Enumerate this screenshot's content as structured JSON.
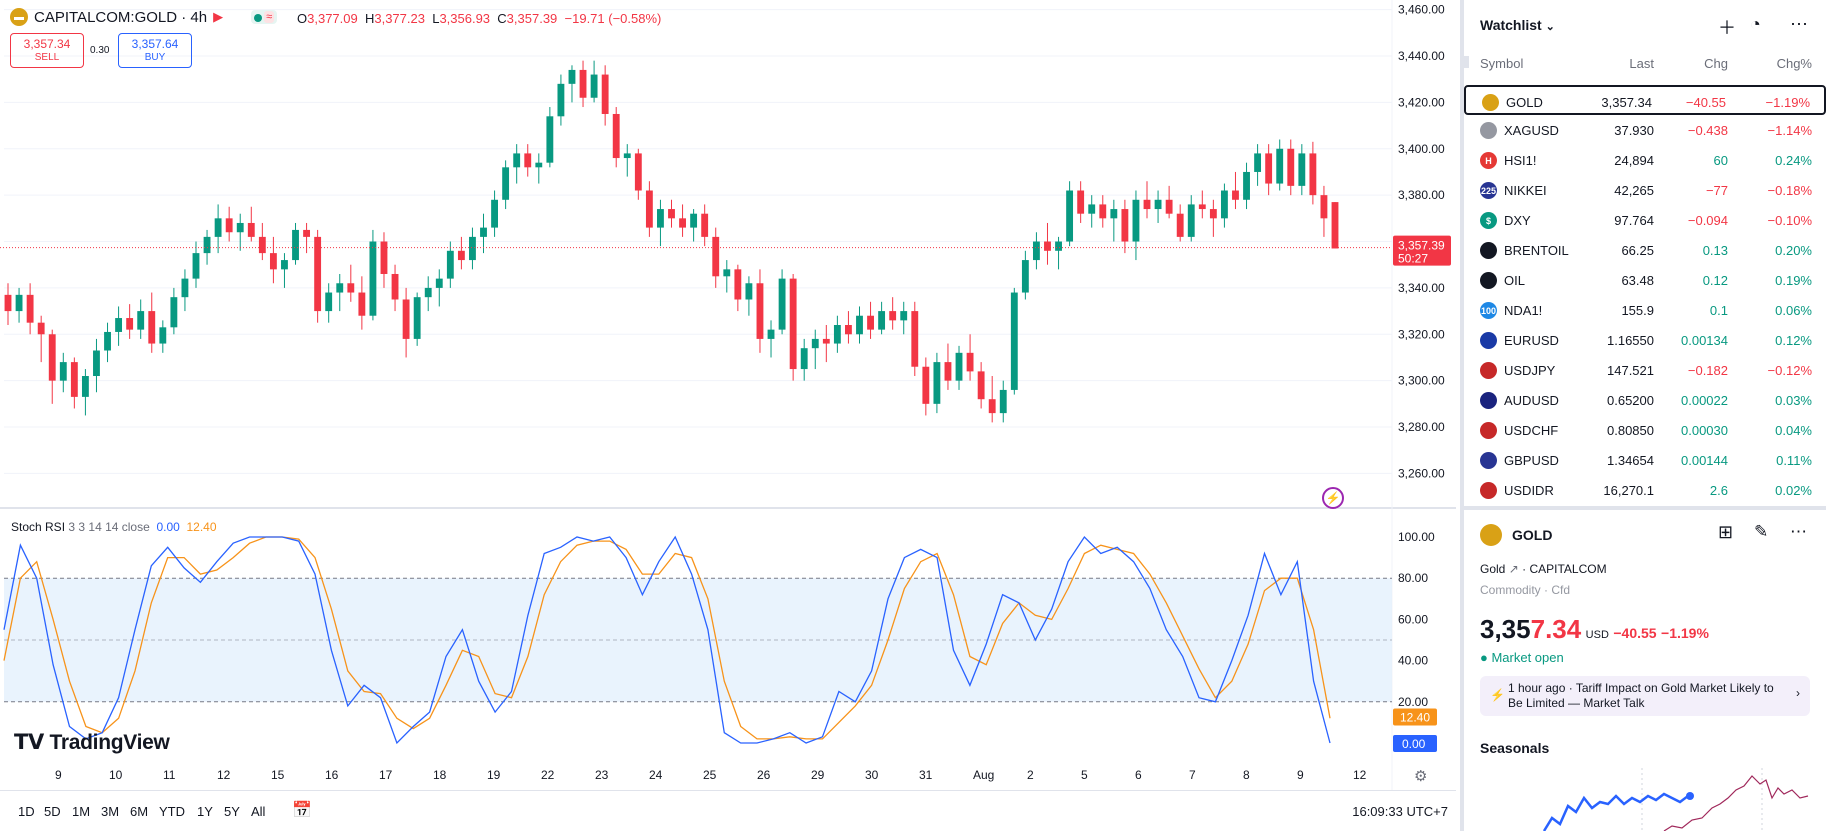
{
  "header": {
    "symbol_title": "CAPITALCOM:GOLD · 4h",
    "logo_icon": "gold-bars-icon",
    "ohlc": {
      "o_label": "O",
      "o": "3,377.09",
      "h_label": "H",
      "h": "3,377.23",
      "l_label": "L",
      "l": "3,356.93",
      "c_label": "C",
      "c": "3,357.39",
      "change": "−19.71 (−0.58%)"
    },
    "sell_price": "3,357.34",
    "sell_label": "SELL",
    "spread": "0.30",
    "buy_price": "3,357.64",
    "buy_label": "BUY"
  },
  "price_axis": {
    "ticks": [
      "3,460.00",
      "3,440.00",
      "3,420.00",
      "3,400.00",
      "3,380.00",
      "3,360.00",
      "3,340.00",
      "3,320.00",
      "3,300.00",
      "3,280.00",
      "3,260.00"
    ],
    "current_price": "3,357.39",
    "countdown": "50:27"
  },
  "indicator": {
    "name": "Stoch RSI",
    "params": "3 3 14 14 close",
    "k_value": "0.00",
    "d_value": "12.40",
    "ticks": [
      "100.00",
      "80.00",
      "60.00",
      "40.00",
      "20.00"
    ],
    "k_badge": "0.00",
    "d_badge": "12.40"
  },
  "time_axis": {
    "labels": [
      "9",
      "10",
      "11",
      "12",
      "15",
      "16",
      "17",
      "18",
      "19",
      "22",
      "23",
      "24",
      "25",
      "26",
      "29",
      "30",
      "31",
      "Aug",
      "2",
      "5",
      "6",
      "7",
      "8",
      "9",
      "12"
    ]
  },
  "brand": {
    "logo_text": "TradingView"
  },
  "bottom_bar": {
    "ranges": [
      "1D",
      "5D",
      "1M",
      "3M",
      "6M",
      "YTD",
      "1Y",
      "5Y",
      "All"
    ],
    "goto_icon": "calendar-goto-icon",
    "clock": "16:09:33 UTC+7"
  },
  "colors": {
    "up": "#089981",
    "down": "#f23645",
    "k_line": "#2962ff",
    "d_line": "#f7931a"
  },
  "watchlist": {
    "title": "Watchlist",
    "columns": [
      "Symbol",
      "Last",
      "Chg",
      "Chg%"
    ],
    "rows": [
      {
        "symbol": "GOLD",
        "last": "3,357.34",
        "chg": "−40.55",
        "pct": "−1.19%",
        "dir": "neg",
        "icon_color": "#d9a116",
        "icon": "gold-bars-icon",
        "icon_text": ""
      },
      {
        "symbol": "XAGUSD",
        "last": "37.930",
        "chg": "−0.438",
        "pct": "−1.14%",
        "dir": "neg",
        "icon_color": "#9598a1",
        "icon": "silver-bars-icon",
        "icon_text": ""
      },
      {
        "symbol": "HSI1!",
        "last": "24,894",
        "chg": "60",
        "pct": "0.24%",
        "dir": "pos",
        "icon_color": "#e53935",
        "icon": "hsi-icon",
        "icon_text": "H"
      },
      {
        "symbol": "NIKKEI",
        "last": "42,265",
        "chg": "−77",
        "pct": "−0.18%",
        "dir": "neg",
        "icon_color": "#283593",
        "icon": "nikkei-icon",
        "icon_text": "225"
      },
      {
        "symbol": "DXY",
        "last": "97.764",
        "chg": "−0.094",
        "pct": "−0.10%",
        "dir": "neg",
        "icon_color": "#089981",
        "icon": "dollar-icon",
        "icon_text": "$"
      },
      {
        "symbol": "BRENTOIL",
        "last": "66.25",
        "chg": "0.13",
        "pct": "0.20%",
        "dir": "pos",
        "icon_color": "#131722",
        "icon": "oil-drop-icon",
        "icon_text": ""
      },
      {
        "symbol": "OIL",
        "last": "63.48",
        "chg": "0.12",
        "pct": "0.19%",
        "dir": "pos",
        "icon_color": "#131722",
        "icon": "oil-drop-icon",
        "icon_text": ""
      },
      {
        "symbol": "NDA1!",
        "last": "155.9",
        "chg": "0.1",
        "pct": "0.06%",
        "dir": "pos",
        "icon_color": "#1e88e5",
        "icon": "nasdaq-icon",
        "icon_text": "100"
      },
      {
        "symbol": "EURUSD",
        "last": "1.16550",
        "chg": "0.00134",
        "pct": "0.12%",
        "dir": "pos",
        "icon_color": "#1a3aa6",
        "icon": "flag-eu-us-icon",
        "icon_text": ""
      },
      {
        "symbol": "USDJPY",
        "last": "147.521",
        "chg": "−0.182",
        "pct": "−0.12%",
        "dir": "neg",
        "icon_color": "#c62828",
        "icon": "flag-us-jp-icon",
        "icon_text": ""
      },
      {
        "symbol": "AUDUSD",
        "last": "0.65200",
        "chg": "0.00022",
        "pct": "0.03%",
        "dir": "pos",
        "icon_color": "#1a237e",
        "icon": "flag-au-us-icon",
        "icon_text": ""
      },
      {
        "symbol": "USDCHF",
        "last": "0.80850",
        "chg": "0.00030",
        "pct": "0.04%",
        "dir": "pos",
        "icon_color": "#c62828",
        "icon": "flag-us-ch-icon",
        "icon_text": ""
      },
      {
        "symbol": "GBPUSD",
        "last": "1.34654",
        "chg": "0.00144",
        "pct": "0.11%",
        "dir": "pos",
        "icon_color": "#283593",
        "icon": "flag-gb-us-icon",
        "icon_text": ""
      },
      {
        "symbol": "USDIDR",
        "last": "16,270.1",
        "chg": "2.6",
        "pct": "0.02%",
        "dir": "pos",
        "icon_color": "#c62828",
        "icon": "flag-us-id-icon",
        "icon_text": ""
      }
    ]
  },
  "detail": {
    "symbol": "GOLD",
    "name": "Gold",
    "exchange": "CAPITALCOM",
    "type": "Commodity · Cfd",
    "price_main": "3,35",
    "price_tail": "7.34",
    "currency": "USD",
    "change": "−40.55",
    "change_pct": "−1.19%",
    "market_status": "Market open",
    "news_time": "1 hour ago",
    "news_title": "Tariff Impact on Gold Market Likely to Be Limited — Market Talk",
    "seasonals_title": "Seasonals"
  },
  "chart_data": {
    "type": "candlestick",
    "symbol": "CAPITALCOM:GOLD",
    "interval": "4h",
    "ylim": [
      3255,
      3462
    ],
    "candles": [
      [
        3337,
        3342,
        3324,
        3330
      ],
      [
        3330,
        3340,
        3325,
        3337
      ],
      [
        3337,
        3342,
        3320,
        3325
      ],
      [
        3325,
        3328,
        3308,
        3320
      ],
      [
        3320,
        3322,
        3290,
        3300
      ],
      [
        3300,
        3312,
        3295,
        3308
      ],
      [
        3308,
        3310,
        3288,
        3293
      ],
      [
        3293,
        3305,
        3285,
        3302
      ],
      [
        3302,
        3318,
        3295,
        3313
      ],
      [
        3313,
        3325,
        3308,
        3321
      ],
      [
        3321,
        3332,
        3315,
        3327
      ],
      [
        3327,
        3333,
        3318,
        3322
      ],
      [
        3322,
        3335,
        3318,
        3330
      ],
      [
        3330,
        3338,
        3312,
        3316
      ],
      [
        3316,
        3326,
        3312,
        3323
      ],
      [
        3323,
        3340,
        3320,
        3336
      ],
      [
        3336,
        3348,
        3330,
        3344
      ],
      [
        3344,
        3360,
        3340,
        3355
      ],
      [
        3355,
        3365,
        3350,
        3362
      ],
      [
        3362,
        3376,
        3355,
        3370
      ],
      [
        3370,
        3375,
        3360,
        3364
      ],
      [
        3364,
        3372,
        3356,
        3368
      ],
      [
        3368,
        3375,
        3360,
        3362
      ],
      [
        3362,
        3368,
        3352,
        3355
      ],
      [
        3355,
        3362,
        3342,
        3348
      ],
      [
        3348,
        3355,
        3340,
        3352
      ],
      [
        3352,
        3368,
        3350,
        3365
      ],
      [
        3365,
        3368,
        3355,
        3362
      ],
      [
        3362,
        3365,
        3325,
        3330
      ],
      [
        3330,
        3342,
        3325,
        3338
      ],
      [
        3338,
        3346,
        3330,
        3342
      ],
      [
        3342,
        3350,
        3334,
        3338
      ],
      [
        3338,
        3345,
        3322,
        3328
      ],
      [
        3328,
        3365,
        3326,
        3360
      ],
      [
        3360,
        3364,
        3340,
        3346
      ],
      [
        3346,
        3350,
        3330,
        3335
      ],
      [
        3335,
        3340,
        3310,
        3318
      ],
      [
        3318,
        3338,
        3315,
        3336
      ],
      [
        3336,
        3345,
        3330,
        3340
      ],
      [
        3340,
        3348,
        3332,
        3344
      ],
      [
        3344,
        3360,
        3340,
        3356
      ],
      [
        3356,
        3362,
        3348,
        3352
      ],
      [
        3352,
        3366,
        3348,
        3362
      ],
      [
        3362,
        3372,
        3355,
        3366
      ],
      [
        3366,
        3382,
        3362,
        3378
      ],
      [
        3378,
        3395,
        3374,
        3392
      ],
      [
        3392,
        3402,
        3385,
        3398
      ],
      [
        3398,
        3402,
        3388,
        3392
      ],
      [
        3392,
        3398,
        3385,
        3394
      ],
      [
        3394,
        3418,
        3392,
        3414
      ],
      [
        3414,
        3432,
        3410,
        3428
      ],
      [
        3428,
        3436,
        3420,
        3434
      ],
      [
        3434,
        3438,
        3418,
        3422
      ],
      [
        3422,
        3438,
        3420,
        3432
      ],
      [
        3432,
        3436,
        3410,
        3415
      ],
      [
        3415,
        3418,
        3392,
        3396
      ],
      [
        3396,
        3402,
        3388,
        3398
      ],
      [
        3398,
        3400,
        3378,
        3382
      ],
      [
        3382,
        3386,
        3362,
        3366
      ],
      [
        3366,
        3378,
        3358,
        3374
      ],
      [
        3374,
        3378,
        3366,
        3370
      ],
      [
        3370,
        3376,
        3362,
        3366
      ],
      [
        3366,
        3374,
        3360,
        3372
      ],
      [
        3372,
        3376,
        3358,
        3362
      ],
      [
        3362,
        3366,
        3340,
        3345
      ],
      [
        3345,
        3352,
        3338,
        3348
      ],
      [
        3348,
        3350,
        3330,
        3335
      ],
      [
        3335,
        3345,
        3328,
        3342
      ],
      [
        3342,
        3348,
        3312,
        3318
      ],
      [
        3318,
        3326,
        3310,
        3322
      ],
      [
        3322,
        3348,
        3320,
        3344
      ],
      [
        3344,
        3346,
        3300,
        3305
      ],
      [
        3305,
        3318,
        3300,
        3314
      ],
      [
        3314,
        3322,
        3305,
        3318
      ],
      [
        3318,
        3324,
        3308,
        3316
      ],
      [
        3316,
        3328,
        3312,
        3324
      ],
      [
        3324,
        3330,
        3316,
        3320
      ],
      [
        3320,
        3332,
        3316,
        3328
      ],
      [
        3328,
        3334,
        3318,
        3322
      ],
      [
        3322,
        3334,
        3320,
        3330
      ],
      [
        3330,
        3336,
        3322,
        3326
      ],
      [
        3326,
        3334,
        3320,
        3330
      ],
      [
        3330,
        3334,
        3302,
        3306
      ],
      [
        3306,
        3310,
        3285,
        3290
      ],
      [
        3290,
        3312,
        3286,
        3308
      ],
      [
        3308,
        3316,
        3296,
        3300
      ],
      [
        3300,
        3315,
        3296,
        3312
      ],
      [
        3312,
        3320,
        3300,
        3304
      ],
      [
        3304,
        3308,
        3288,
        3292
      ],
      [
        3292,
        3302,
        3282,
        3286
      ],
      [
        3286,
        3300,
        3282,
        3296
      ],
      [
        3296,
        3340,
        3294,
        3338
      ],
      [
        3338,
        3356,
        3335,
        3352
      ],
      [
        3352,
        3364,
        3348,
        3360
      ],
      [
        3360,
        3368,
        3350,
        3356
      ],
      [
        3356,
        3362,
        3348,
        3360
      ],
      [
        3360,
        3386,
        3358,
        3382
      ],
      [
        3382,
        3386,
        3368,
        3372
      ],
      [
        3372,
        3380,
        3366,
        3376
      ],
      [
        3376,
        3380,
        3366,
        3370
      ],
      [
        3370,
        3378,
        3360,
        3374
      ],
      [
        3374,
        3378,
        3355,
        3360
      ],
      [
        3360,
        3382,
        3352,
        3378
      ],
      [
        3378,
        3386,
        3370,
        3374
      ],
      [
        3374,
        3382,
        3368,
        3378
      ],
      [
        3378,
        3384,
        3370,
        3372
      ],
      [
        3372,
        3376,
        3360,
        3362
      ],
      [
        3362,
        3380,
        3360,
        3376
      ],
      [
        3376,
        3382,
        3370,
        3374
      ],
      [
        3374,
        3378,
        3362,
        3370
      ],
      [
        3370,
        3385,
        3366,
        3382
      ],
      [
        3382,
        3390,
        3374,
        3378
      ],
      [
        3378,
        3394,
        3374,
        3390
      ],
      [
        3390,
        3402,
        3384,
        3398
      ],
      [
        3398,
        3402,
        3380,
        3385
      ],
      [
        3385,
        3404,
        3382,
        3400
      ],
      [
        3400,
        3404,
        3380,
        3384
      ],
      [
        3384,
        3402,
        3380,
        3398
      ],
      [
        3398,
        3403,
        3376,
        3380
      ],
      [
        3380,
        3384,
        3362,
        3370
      ],
      [
        3377,
        3377,
        3357,
        3357
      ]
    ],
    "stoch_k": [
      55,
      96,
      80,
      38,
      8,
      2,
      5,
      22,
      55,
      86,
      95,
      85,
      78,
      88,
      97,
      100,
      100,
      100,
      98,
      82,
      45,
      18,
      28,
      22,
      0,
      8,
      15,
      42,
      55,
      30,
      15,
      25,
      62,
      92,
      95,
      100,
      98,
      100,
      90,
      72,
      88,
      100,
      82,
      55,
      5,
      0,
      0,
      2,
      5,
      0,
      3,
      25,
      20,
      35,
      70,
      90,
      94,
      90,
      45,
      28,
      48,
      72,
      68,
      50,
      65,
      88,
      100,
      92,
      95,
      88,
      75,
      55,
      42,
      22,
      20,
      40,
      62,
      92,
      72,
      88,
      30,
      0
    ],
    "stoch_d": [
      40,
      80,
      88,
      60,
      30,
      8,
      5,
      12,
      35,
      68,
      90,
      90,
      82,
      84,
      90,
      97,
      100,
      100,
      99,
      90,
      65,
      35,
      25,
      24,
      12,
      7,
      12,
      28,
      45,
      42,
      24,
      22,
      42,
      72,
      88,
      96,
      98,
      98,
      94,
      82,
      82,
      92,
      90,
      70,
      30,
      8,
      2,
      2,
      3,
      2,
      2,
      10,
      18,
      28,
      50,
      75,
      88,
      92,
      72,
      42,
      38,
      58,
      68,
      62,
      60,
      75,
      92,
      96,
      94,
      92,
      82,
      68,
      52,
      36,
      22,
      30,
      48,
      74,
      80,
      80,
      55,
      12
    ],
    "stoch_ylim": [
      0,
      100
    ],
    "stoch_bands": [
      20,
      50,
      80
    ]
  }
}
